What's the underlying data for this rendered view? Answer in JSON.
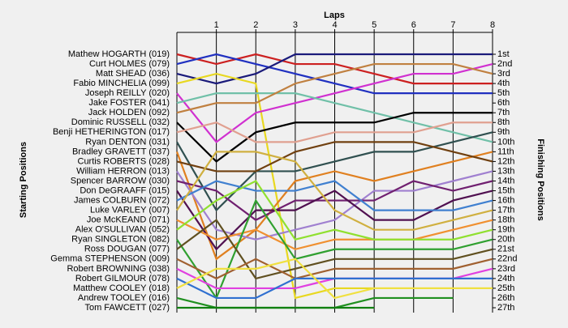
{
  "chart_data": {
    "type": "line",
    "title": "Laps",
    "y_label_left": "Starting Positions",
    "y_label_right": "Finishing Positions",
    "x": [
      0,
      1,
      2,
      3,
      4,
      5,
      6,
      7,
      8
    ],
    "xlim": [
      0,
      8
    ],
    "xticks": [
      1,
      2,
      3,
      4,
      5,
      6,
      7,
      8
    ],
    "ylim": [
      1,
      27
    ],
    "y_reversed": true,
    "grid": true,
    "finishing_labels": [
      "1st",
      "2nd",
      "3rd",
      "4th",
      "5th",
      "6th",
      "7th",
      "8th",
      "9th",
      "10th",
      "11th",
      "12th",
      "13th",
      "14th",
      "15th",
      "16th",
      "17th",
      "18th",
      "19th",
      "20th",
      "21st",
      "22nd",
      "23rd",
      "24th",
      "25th",
      "26th",
      "27th"
    ],
    "series": [
      {
        "name": "Mathew HOGARTH (019)",
        "color": "#cc2020",
        "values": [
          1,
          2,
          1,
          2,
          2,
          3,
          4,
          4,
          4
        ]
      },
      {
        "name": "Curt HOLMES (079)",
        "color": "#2030c0",
        "values": [
          2,
          1,
          2,
          3,
          4,
          5,
          5,
          5,
          5
        ]
      },
      {
        "name": "Matt SHEAD (036)",
        "color": "#1a1a7a",
        "values": [
          3,
          4,
          3,
          1,
          1,
          1,
          1,
          1,
          1
        ]
      },
      {
        "name": "Fabio MINCHELIA (099)",
        "color": "#e8d820",
        "values": [
          4,
          3,
          4,
          26,
          25,
          25,
          25,
          25,
          25
        ]
      },
      {
        "name": "Joseph REILLY (020)",
        "color": "#d030d0",
        "values": [
          5,
          10,
          7,
          6,
          5,
          4,
          3,
          3,
          2
        ]
      },
      {
        "name": "Jake FOSTER (041)",
        "color": "#70c0a8",
        "values": [
          6,
          5,
          5,
          5,
          6,
          7,
          8,
          9,
          10
        ]
      },
      {
        "name": "Jack HOLDEN (092)",
        "color": "#c08040",
        "values": [
          7,
          6,
          6,
          4,
          3,
          2,
          2,
          2,
          3
        ]
      },
      {
        "name": "Dominic RUSSELL (032)",
        "color": "#000000",
        "values": [
          8,
          12,
          9,
          8,
          8,
          8,
          7,
          7,
          7
        ]
      },
      {
        "name": "Benji HETHERINGTON (017)",
        "color": "#e0a090",
        "values": [
          9,
          8,
          10,
          10,
          9,
          9,
          9,
          8,
          8
        ]
      },
      {
        "name": "Ryan DENTON (031)",
        "color": "#305050",
        "values": [
          10,
          17,
          13,
          13,
          12,
          11,
          11,
          10,
          9
        ]
      },
      {
        "name": "Bradley GRAVETT (037)",
        "color": "#e08020",
        "values": [
          11,
          22,
          19,
          14,
          13,
          14,
          13,
          12,
          11
        ]
      },
      {
        "name": "Curtis ROBERTS (028)",
        "color": "#704010",
        "values": [
          12,
          13,
          13,
          11,
          10,
          10,
          10,
          11,
          12
        ]
      },
      {
        "name": "William HERRON (013)",
        "color": "#a080d0",
        "values": [
          13,
          19,
          20,
          19,
          18,
          15,
          15,
          14,
          13
        ]
      },
      {
        "name": "Spencer BARROW (030)",
        "color": "#702070",
        "values": [
          14,
          15,
          18,
          16,
          16,
          16,
          14,
          15,
          14
        ]
      },
      {
        "name": "Don DeGRAAFF (015)",
        "color": "#501050",
        "values": [
          15,
          21,
          17,
          17,
          15,
          18,
          18,
          16,
          15
        ]
      },
      {
        "name": "James COLBURN (072)",
        "color": "#4080d0",
        "values": [
          16,
          14,
          15,
          15,
          14,
          17,
          17,
          17,
          16
        ]
      },
      {
        "name": "Luke VARLEY (007)",
        "color": "#d0b040",
        "values": [
          17,
          11,
          11,
          12,
          17,
          19,
          19,
          18,
          17
        ]
      },
      {
        "name": "Joe McKEAND (071)",
        "color": "#f09030",
        "values": [
          18,
          20,
          19,
          21,
          20,
          20,
          20,
          19,
          18
        ]
      },
      {
        "name": "Alex O'SULLIVAN (052)",
        "color": "#90e030",
        "values": [
          19,
          16,
          14,
          20,
          19,
          20,
          20,
          20,
          19
        ]
      },
      {
        "name": "Ryan SINGLETON (082)",
        "color": "#30a030",
        "values": [
          20,
          26,
          16,
          22,
          21,
          21,
          21,
          21,
          20
        ]
      },
      {
        "name": "Ross DOUGAN (077)",
        "color": "#605020",
        "values": [
          21,
          18,
          24,
          23,
          22,
          22,
          22,
          22,
          21
        ]
      },
      {
        "name": "Gemma STEPHENSON (009)",
        "color": "#a06030",
        "values": [
          22,
          24,
          22,
          24,
          23,
          23,
          23,
          23,
          22
        ]
      },
      {
        "name": "Robert BROWNING (038)",
        "color": "#e040e0",
        "values": [
          23,
          25,
          25,
          25,
          24,
          24,
          24,
          24,
          23
        ]
      },
      {
        "name": "Robert GILMOUR (078)",
        "color": "#3070d0",
        "values": [
          24,
          26,
          26,
          24,
          24,
          24,
          24,
          24,
          24
        ]
      },
      {
        "name": "Matthew COOLEY (018)",
        "color": "#f0e040",
        "values": [
          25,
          23,
          23,
          22,
          26,
          25,
          25,
          25,
          25
        ]
      },
      {
        "name": "Andrew TOOLEY (016)",
        "color": "#209020",
        "values": [
          26,
          27,
          27,
          27,
          27,
          26,
          26,
          26,
          null
        ]
      },
      {
        "name": "Tom FAWCETT (027)",
        "color": "#108010",
        "values": [
          27,
          27,
          27,
          27,
          27,
          27,
          null,
          null,
          null
        ]
      }
    ]
  }
}
